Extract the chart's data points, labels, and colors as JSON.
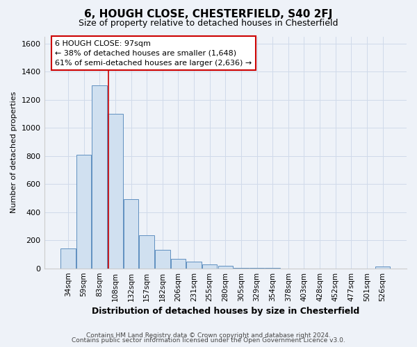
{
  "title1": "6, HOUGH CLOSE, CHESTERFIELD, S40 2FJ",
  "title2": "Size of property relative to detached houses in Chesterfield",
  "xlabel": "Distribution of detached houses by size in Chesterfield",
  "ylabel": "Number of detached properties",
  "categories": [
    "34sqm",
    "59sqm",
    "83sqm",
    "108sqm",
    "132sqm",
    "157sqm",
    "182sqm",
    "206sqm",
    "231sqm",
    "255sqm",
    "280sqm",
    "305sqm",
    "329sqm",
    "354sqm",
    "378sqm",
    "403sqm",
    "428sqm",
    "452sqm",
    "477sqm",
    "501sqm",
    "526sqm"
  ],
  "values": [
    140,
    810,
    1300,
    1100,
    490,
    235,
    130,
    70,
    50,
    30,
    20,
    5,
    5,
    3,
    0,
    0,
    0,
    0,
    0,
    0,
    15
  ],
  "bar_color": "#d0e0f0",
  "bar_edge_color": "#6090c0",
  "grid_color": "#d0daea",
  "background_color": "#eef2f8",
  "vline_x": 2.55,
  "vline_color": "#cc0000",
  "annotation_text": "6 HOUGH CLOSE: 97sqm\n← 38% of detached houses are smaller (1,648)\n61% of semi-detached houses are larger (2,636) →",
  "annotation_box_color": "#ffffff",
  "annotation_border_color": "#cc0000",
  "ylim": [
    0,
    1650
  ],
  "yticks": [
    0,
    200,
    400,
    600,
    800,
    1000,
    1200,
    1400,
    1600
  ],
  "footer1": "Contains HM Land Registry data © Crown copyright and database right 2024.",
  "footer2": "Contains public sector information licensed under the Open Government Licence v3.0."
}
